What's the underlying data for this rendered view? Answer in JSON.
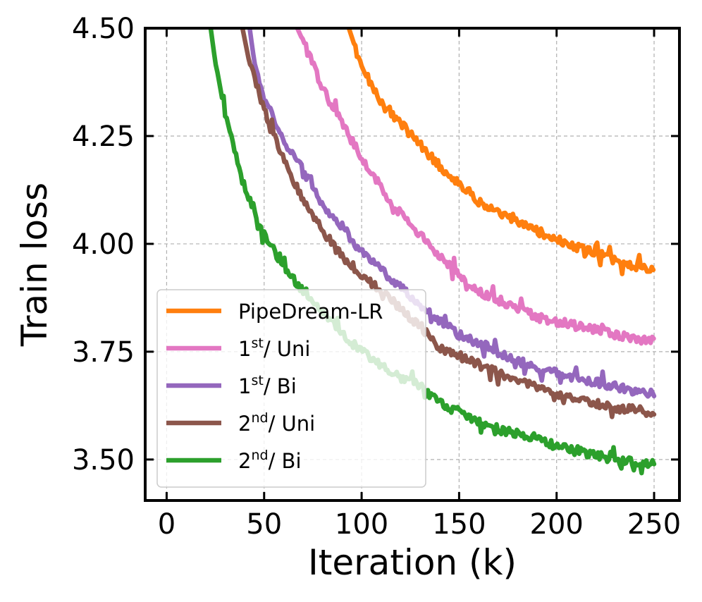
{
  "chart_data": {
    "type": "line",
    "xlabel": "Iteration (k)",
    "ylabel": "Train loss",
    "xlim": [
      -11,
      263
    ],
    "ylim": [
      3.405,
      4.5
    ],
    "xticks": [
      0,
      50,
      100,
      150,
      200,
      250
    ],
    "yticks": [
      3.5,
      3.75,
      4.0,
      4.25,
      4.5
    ],
    "xtick_labels": [
      "0",
      "50",
      "100",
      "150",
      "200",
      "250"
    ],
    "ytick_labels": [
      "3.50",
      "3.75",
      "4.00",
      "4.25",
      "4.50"
    ],
    "grid": true,
    "legend_position": "lower-left",
    "series": [
      {
        "name": "PipeDream-LR",
        "label_main": "PipeDream-LR",
        "label_sup": "",
        "label_rest": "",
        "color": "#ff7f0e",
        "points": [
          [
            92,
            4.52
          ],
          [
            100,
            4.41
          ],
          [
            110,
            4.33
          ],
          [
            120,
            4.28
          ],
          [
            130,
            4.23
          ],
          [
            140,
            4.18
          ],
          [
            150,
            4.14
          ],
          [
            160,
            4.1
          ],
          [
            170,
            4.07
          ],
          [
            180,
            4.05
          ],
          [
            190,
            4.03
          ],
          [
            200,
            4.01
          ],
          [
            210,
            3.99
          ],
          [
            220,
            3.98
          ],
          [
            230,
            3.96
          ],
          [
            240,
            3.95
          ],
          [
            250,
            3.94
          ]
        ]
      },
      {
        "name": "1st/ Uni",
        "label_main": "1",
        "label_sup": "st",
        "label_rest": "/ Uni",
        "color": "#e377c2",
        "points": [
          [
            65,
            4.52
          ],
          [
            70,
            4.47
          ],
          [
            80,
            4.36
          ],
          [
            90,
            4.28
          ],
          [
            100,
            4.2
          ],
          [
            110,
            4.13
          ],
          [
            120,
            4.07
          ],
          [
            130,
            4.02
          ],
          [
            140,
            3.97
          ],
          [
            150,
            3.93
          ],
          [
            160,
            3.89
          ],
          [
            170,
            3.87
          ],
          [
            180,
            3.85
          ],
          [
            190,
            3.83
          ],
          [
            200,
            3.82
          ],
          [
            210,
            3.81
          ],
          [
            220,
            3.8
          ],
          [
            230,
            3.79
          ],
          [
            240,
            3.78
          ],
          [
            250,
            3.775
          ]
        ]
      },
      {
        "name": "1st/ Bi",
        "label_main": "1",
        "label_sup": "st",
        "label_rest": "/ Bi",
        "color": "#9467bd",
        "points": [
          [
            42,
            4.52
          ],
          [
            45,
            4.42
          ],
          [
            50,
            4.34
          ],
          [
            60,
            4.24
          ],
          [
            70,
            4.17
          ],
          [
            80,
            4.09
          ],
          [
            90,
            4.04
          ],
          [
            100,
            3.98
          ],
          [
            110,
            3.94
          ],
          [
            120,
            3.9
          ],
          [
            130,
            3.86
          ],
          [
            140,
            3.82
          ],
          [
            150,
            3.79
          ],
          [
            160,
            3.77
          ],
          [
            170,
            3.75
          ],
          [
            180,
            3.73
          ],
          [
            190,
            3.71
          ],
          [
            200,
            3.7
          ],
          [
            210,
            3.69
          ],
          [
            220,
            3.68
          ],
          [
            230,
            3.67
          ],
          [
            240,
            3.66
          ],
          [
            250,
            3.65
          ]
        ]
      },
      {
        "name": "2nd/ Uni",
        "label_main": "2",
        "label_sup": "nd",
        "label_rest": "/ Uni",
        "color": "#8c564b",
        "points": [
          [
            38,
            4.52
          ],
          [
            42,
            4.43
          ],
          [
            50,
            4.31
          ],
          [
            60,
            4.2
          ],
          [
            70,
            4.1
          ],
          [
            80,
            4.03
          ],
          [
            90,
            3.97
          ],
          [
            100,
            3.93
          ],
          [
            110,
            3.89
          ],
          [
            120,
            3.85
          ],
          [
            130,
            3.81
          ],
          [
            140,
            3.76
          ],
          [
            150,
            3.74
          ],
          [
            160,
            3.72
          ],
          [
            170,
            3.7
          ],
          [
            180,
            3.68
          ],
          [
            190,
            3.67
          ],
          [
            200,
            3.65
          ],
          [
            210,
            3.64
          ],
          [
            220,
            3.63
          ],
          [
            230,
            3.62
          ],
          [
            240,
            3.615
          ],
          [
            250,
            3.61
          ]
        ]
      },
      {
        "name": "2nd/ Bi",
        "label_main": "2",
        "label_sup": "nd",
        "label_rest": "/ Bi",
        "color": "#2ca02c",
        "points": [
          [
            22,
            4.52
          ],
          [
            25,
            4.42
          ],
          [
            30,
            4.3
          ],
          [
            35,
            4.21
          ],
          [
            40,
            4.13
          ],
          [
            45,
            4.08
          ],
          [
            50,
            4.02
          ],
          [
            60,
            3.95
          ],
          [
            70,
            3.89
          ],
          [
            80,
            3.84
          ],
          [
            90,
            3.79
          ],
          [
            100,
            3.75
          ],
          [
            110,
            3.72
          ],
          [
            120,
            3.69
          ],
          [
            130,
            3.67
          ],
          [
            140,
            3.63
          ],
          [
            150,
            3.61
          ],
          [
            160,
            3.59
          ],
          [
            170,
            3.57
          ],
          [
            180,
            3.56
          ],
          [
            190,
            3.55
          ],
          [
            200,
            3.53
          ],
          [
            210,
            3.52
          ],
          [
            220,
            3.51
          ],
          [
            230,
            3.5
          ],
          [
            240,
            3.495
          ],
          [
            250,
            3.49
          ]
        ]
      }
    ]
  }
}
